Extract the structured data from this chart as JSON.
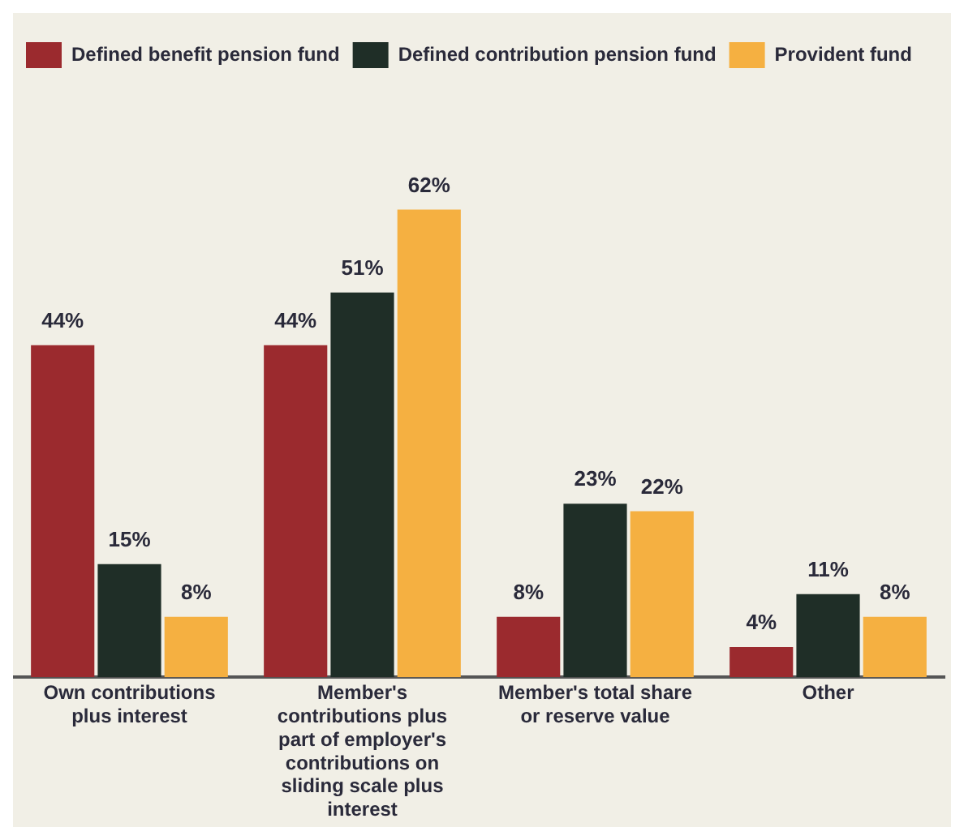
{
  "chart_data": {
    "type": "bar",
    "categories": [
      "Own contributions plus interest",
      "Member's contributions plus part of employer's contributions on sliding scale plus interest",
      "Member's total share or reserve value",
      "Other"
    ],
    "series": [
      {
        "name": "Defined benefit pension fund",
        "color": "#9b2a2e",
        "values": [
          44,
          44,
          8,
          4
        ],
        "value_labels": [
          "44%",
          "44%",
          "8%",
          "4%"
        ]
      },
      {
        "name": "Defined contribution pension fund",
        "color": "#1f2e27",
        "values": [
          15,
          51,
          23,
          11
        ],
        "value_labels": [
          "15%",
          "51%",
          "23%",
          "11%"
        ]
      },
      {
        "name": "Provident fund",
        "color": "#f5b041",
        "values": [
          8,
          62,
          22,
          8
        ],
        "value_labels": [
          "8%",
          "62%",
          "22%",
          "8%"
        ]
      }
    ],
    "legend": "top left",
    "grid": false
  }
}
